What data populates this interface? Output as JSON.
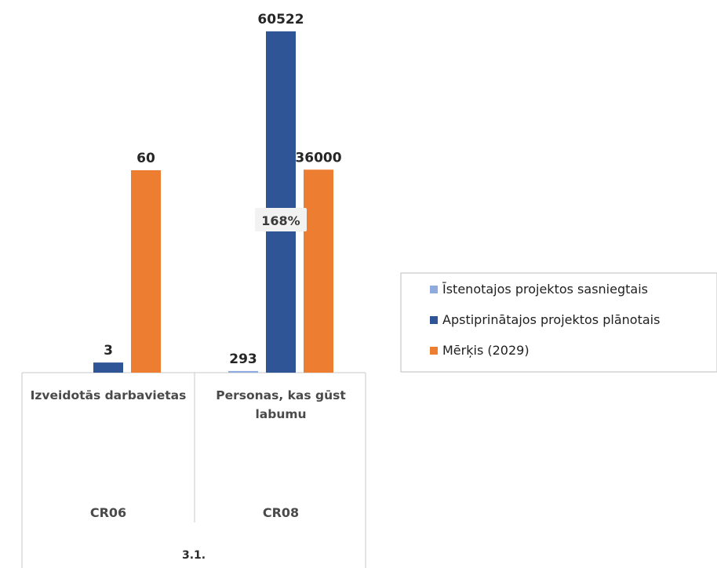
{
  "chart_data": {
    "type": "bar",
    "categories": [
      "Izveidotās darbavietas",
      "Personas, kas gūst labumu"
    ],
    "category_lines": [
      [
        "Izveidotās darbavietas"
      ],
      [
        "Personas, kas gūst",
        "labumu"
      ]
    ],
    "codes": [
      "CR06",
      "CR08"
    ],
    "group": "3.1.",
    "series": [
      {
        "name": "Īstenotajos projektos sasniegtais",
        "values": [
          0,
          293
        ],
        "labels": [
          "",
          "293"
        ],
        "color": "#8faadc"
      },
      {
        "name": "Apstiprinātajos projektos plānotais",
        "values": [
          3,
          60522
        ],
        "labels": [
          "3",
          "60522"
        ],
        "color": "#2f5597"
      },
      {
        "name": "Mērķis (2029)",
        "values": [
          60,
          36000
        ],
        "labels": [
          "60",
          "36000"
        ],
        "color": "#ed7d31"
      }
    ],
    "annotations": [
      {
        "category": "Personas, kas gūst labumu",
        "text": "168%"
      }
    ],
    "legend": "right",
    "grid": false
  }
}
